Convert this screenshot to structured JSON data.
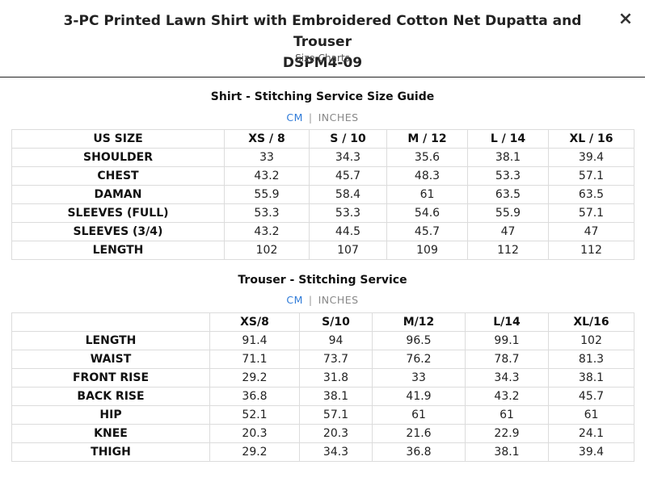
{
  "dialog": {
    "title_line1": "3-PC Printed Lawn Shirt with Embroidered Cotton Net Dupatta and Trouser",
    "title_line2": "DSPM4-09",
    "subtitle": "Size Charts",
    "close_icon": "×"
  },
  "unit_toggle": {
    "cm": "CM",
    "separator": "|",
    "inches": "INCHES",
    "active": "CM",
    "active_color": "#2f7bd8"
  },
  "shirt": {
    "title": "Shirt - Stitching Service Size Guide",
    "header_label": "US SIZE",
    "sizes": [
      "XS / 8",
      "S / 10",
      "M / 12",
      "L / 14",
      "XL / 16"
    ],
    "rows": [
      {
        "label": "SHOULDER",
        "values": [
          "33",
          "34.3",
          "35.6",
          "38.1",
          "39.4"
        ]
      },
      {
        "label": "CHEST",
        "values": [
          "43.2",
          "45.7",
          "48.3",
          "53.3",
          "57.1"
        ]
      },
      {
        "label": "DAMAN",
        "values": [
          "55.9",
          "58.4",
          "61",
          "63.5",
          "63.5"
        ]
      },
      {
        "label": "SLEEVES (FULL)",
        "values": [
          "53.3",
          "53.3",
          "54.6",
          "55.9",
          "57.1"
        ]
      },
      {
        "label": "SLEEVES (3/4)",
        "values": [
          "43.2",
          "44.5",
          "45.7",
          "47",
          "47"
        ]
      },
      {
        "label": "LENGTH",
        "values": [
          "102",
          "107",
          "109",
          "112",
          "112"
        ]
      }
    ]
  },
  "trouser": {
    "title": "Trouser - Stitching Service",
    "header_label": "",
    "sizes": [
      "XS/8",
      "S/10",
      "M/12",
      "L/14",
      "XL/16"
    ],
    "rows": [
      {
        "label": "LENGTH",
        "values": [
          "91.4",
          "94",
          "96.5",
          "99.1",
          "102"
        ]
      },
      {
        "label": "WAIST",
        "values": [
          "71.1",
          "73.7",
          "76.2",
          "78.7",
          "81.3"
        ]
      },
      {
        "label": "FRONT RISE",
        "values": [
          "29.2",
          "31.8",
          "33",
          "34.3",
          "38.1"
        ]
      },
      {
        "label": "BACK RISE",
        "values": [
          "36.8",
          "38.1",
          "41.9",
          "43.2",
          "45.7"
        ]
      },
      {
        "label": "HIP",
        "values": [
          "52.1",
          "57.1",
          "61",
          "61",
          "61"
        ]
      },
      {
        "label": "KNEE",
        "values": [
          "20.3",
          "20.3",
          "21.6",
          "22.9",
          "24.1"
        ]
      },
      {
        "label": "THIGH",
        "values": [
          "29.2",
          "34.3",
          "36.8",
          "38.1",
          "39.4"
        ]
      }
    ]
  }
}
